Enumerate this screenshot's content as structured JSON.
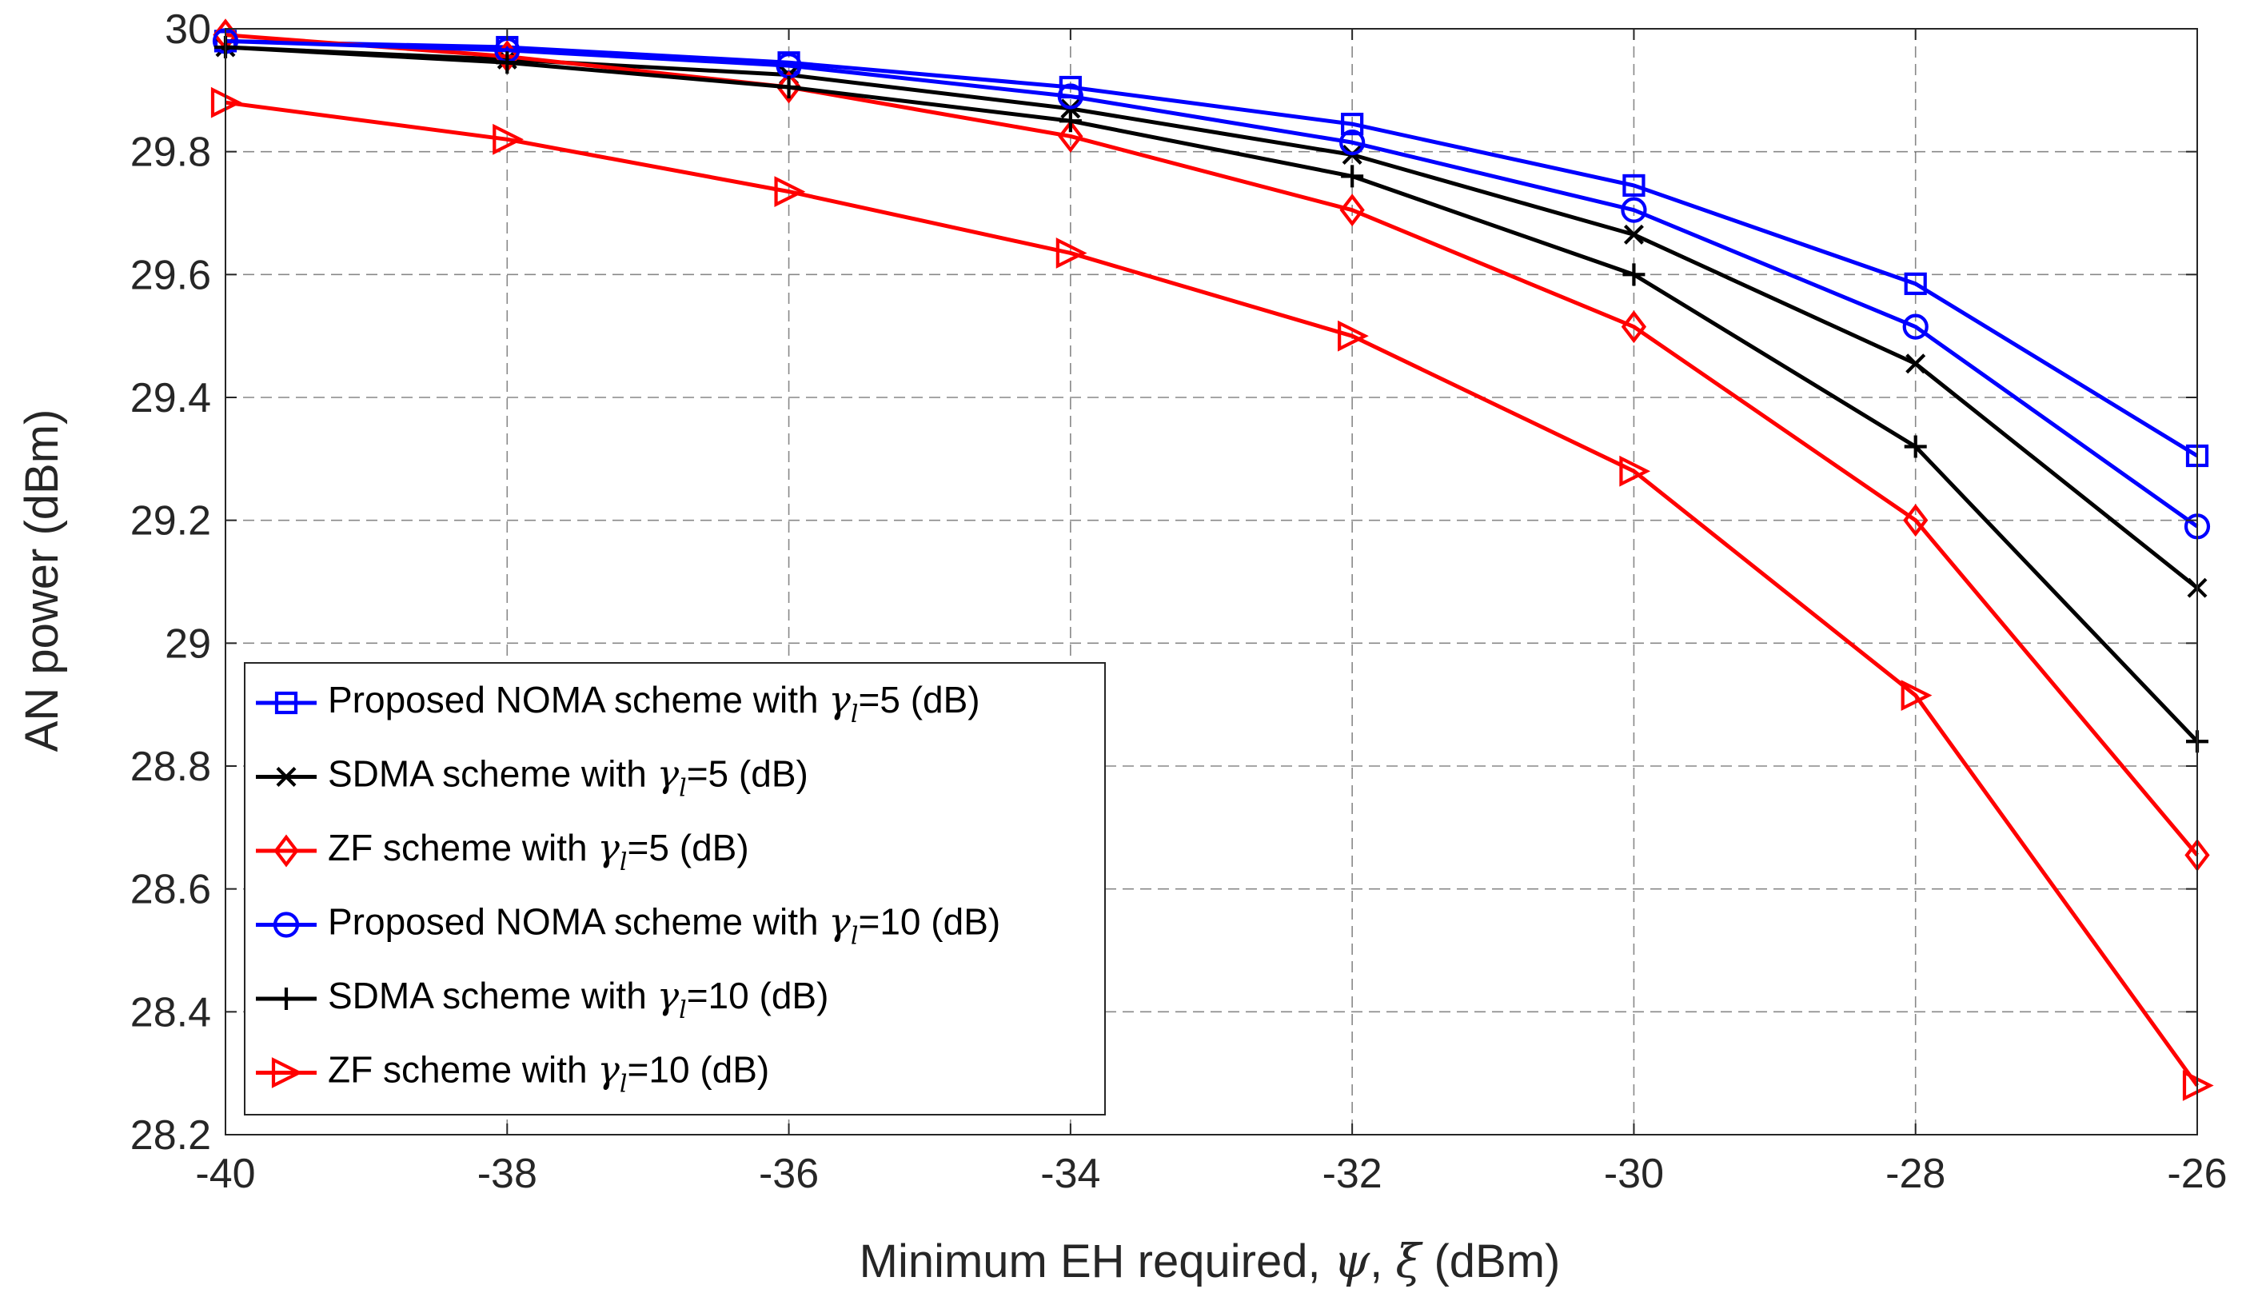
{
  "chart_data": {
    "type": "line",
    "title": "",
    "xlabel": "Minimum EH required, ψ, ξ (dBm)",
    "xlabel_parts": {
      "prefix": "Minimum EH required, ",
      "sym1": "ψ",
      "sep": ", ",
      "sym2": "ξ",
      "suffix": " (dBm)"
    },
    "ylabel": "AN power (dBm)",
    "x": [
      -40,
      -38,
      -36,
      -34,
      -32,
      -30,
      -28,
      -26
    ],
    "xlim": [
      -40,
      -26
    ],
    "ylim": [
      28.2,
      30
    ],
    "xticks": [
      -40,
      -38,
      -36,
      -34,
      -32,
      -30,
      -28,
      -26
    ],
    "xtick_labels": [
      "-40",
      "-38",
      "-36",
      "-34",
      "-32",
      "-30",
      "-28",
      "-26"
    ],
    "yticks": [
      28.2,
      28.4,
      28.6,
      28.8,
      29,
      29.2,
      29.4,
      29.6,
      29.8,
      30
    ],
    "ytick_labels": [
      "28.2",
      "28.4",
      "28.6",
      "28.8",
      "29",
      "29.2",
      "29.4",
      "29.6",
      "29.8",
      "30"
    ],
    "grid": true,
    "legend_position": "lower-left",
    "series": [
      {
        "name": "Proposed NOMA scheme with γl=5 (dB)",
        "label_prefix": "Proposed NOMA scheme with ",
        "gamma": "γ",
        "sub": "l",
        "label_suffix": "=5 (dB)",
        "color": "#0000ff",
        "marker": "square",
        "values": [
          29.98,
          29.97,
          29.945,
          29.905,
          29.845,
          29.745,
          29.585,
          29.305
        ]
      },
      {
        "name": "SDMA scheme with γl=5 (dB)",
        "label_prefix": "SDMA scheme with ",
        "gamma": "γ",
        "sub": "l",
        "label_suffix": "=5 (dB)",
        "color": "#000000",
        "marker": "x",
        "values": [
          29.97,
          29.95,
          29.925,
          29.87,
          29.795,
          29.665,
          29.455,
          29.09
        ]
      },
      {
        "name": "ZF scheme with γl=5 (dB)",
        "label_prefix": "ZF scheme with ",
        "gamma": "γ",
        "sub": "l",
        "label_suffix": "=5 (dB)",
        "color": "#ff0000",
        "marker": "diamond",
        "values": [
          29.99,
          29.955,
          29.905,
          29.825,
          29.705,
          29.515,
          29.2,
          28.655
        ]
      },
      {
        "name": "Proposed NOMA scheme with γl=10 (dB)",
        "label_prefix": "Proposed NOMA scheme with ",
        "gamma": "γ",
        "sub": "l",
        "label_suffix": "=10 (dB)",
        "color": "#0000ff",
        "marker": "circle",
        "values": [
          29.98,
          29.965,
          29.94,
          29.89,
          29.815,
          29.705,
          29.515,
          29.19
        ]
      },
      {
        "name": "SDMA scheme with γl=10 (dB)",
        "label_prefix": "SDMA scheme with ",
        "gamma": "γ",
        "sub": "l",
        "label_suffix": "=10 (dB)",
        "color": "#000000",
        "marker": "plus",
        "values": [
          29.97,
          29.945,
          29.905,
          29.85,
          29.76,
          29.6,
          29.32,
          28.84
        ]
      },
      {
        "name": "ZF scheme with γl=10 (dB)",
        "label_prefix": "ZF scheme with ",
        "gamma": "γ",
        "sub": "l",
        "label_suffix": "=10 (dB)",
        "color": "#ff0000",
        "marker": "triangle-right",
        "values": [
          29.88,
          29.82,
          29.735,
          29.635,
          29.5,
          29.28,
          28.915,
          28.28
        ]
      }
    ]
  }
}
